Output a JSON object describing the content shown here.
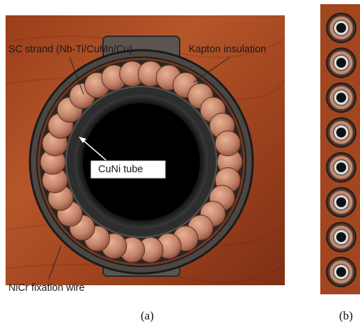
{
  "panel_a": {
    "labels": {
      "sc_strand": "SC strand (Nb-Ti/CuMn/Cu)",
      "kapton": "Kapton insulation",
      "cuni_tube": "CuNi tube",
      "nicr": "NiCr fixation wire"
    },
    "caption": "(a)"
  },
  "panel_b": {
    "caption": "(b)"
  },
  "colors": {
    "background": "#ffffff",
    "wood": "#a1461f",
    "copper": "#c88a6a",
    "tube_interior": "#000000"
  }
}
